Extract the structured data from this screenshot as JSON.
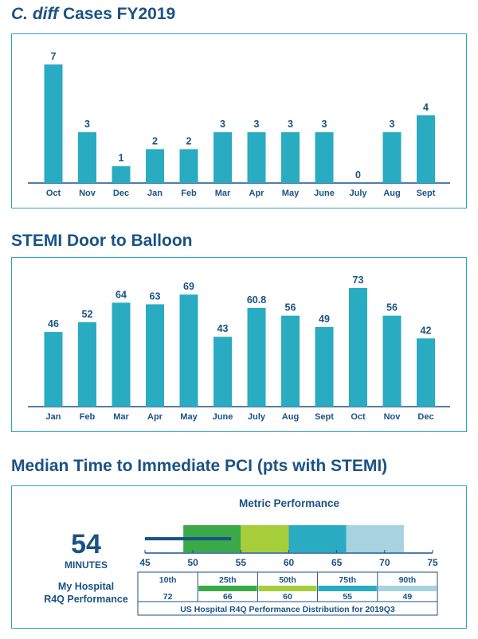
{
  "cdiff": {
    "title_italic": "C. diff",
    "title_rest": " Cases FY2019"
  },
  "stemi": {
    "title": "STEMI Door to Balloon"
  },
  "pci": {
    "title": "Median Time to Immediate PCI (pts with STEMI)",
    "big_value": "54",
    "unit": "MINUTES",
    "perf_label_line1": "My Hospital",
    "perf_label_line2": "R4Q Performance",
    "metric_title": "Metric Performance",
    "table_caption": "US Hospital R4Q Performance Distribution for 2019Q3"
  },
  "chart_data": [
    {
      "type": "bar",
      "title": "C. diff Cases FY2019",
      "categories": [
        "Oct",
        "Nov",
        "Dec",
        "Jan",
        "Feb",
        "Mar",
        "Apr",
        "May",
        "June",
        "July",
        "Aug",
        "Sept"
      ],
      "values": [
        7,
        3,
        1,
        2,
        2,
        3,
        3,
        3,
        3,
        0,
        3,
        4
      ],
      "ylim": [
        0,
        7
      ],
      "bar_color": "#29abc2"
    },
    {
      "type": "bar",
      "title": "STEMI Door to Balloon",
      "categories": [
        "Jan",
        "Feb",
        "Mar",
        "Apr",
        "May",
        "June",
        "July",
        "Aug",
        "Sept",
        "Oct",
        "Nov",
        "Dec"
      ],
      "values": [
        46,
        52,
        64,
        63,
        69,
        43,
        60.8,
        56,
        49,
        73,
        56,
        42
      ],
      "value_labels": [
        "46",
        "52",
        "64",
        "63",
        "69",
        "43",
        "60.8",
        "56",
        "49",
        "73",
        "56",
        "42"
      ],
      "ylim": [
        0,
        73
      ],
      "bar_color": "#29abc2"
    },
    {
      "type": "bar",
      "title": "Metric Performance",
      "xlim": [
        45,
        75
      ],
      "ticks": [
        45,
        50,
        55,
        60,
        65,
        70,
        75
      ],
      "hospital_value": 54,
      "bands": [
        {
          "from": 49,
          "to": 55,
          "color": "#3aa948"
        },
        {
          "from": 55,
          "to": 60,
          "color": "#a6cd3a"
        },
        {
          "from": 60,
          "to": 66,
          "color": "#29abc2"
        },
        {
          "from": 66,
          "to": 72,
          "color": "#a6d3df"
        }
      ],
      "percentiles": [
        "10th",
        "25th",
        "50th",
        "75th",
        "90th"
      ],
      "percentile_values": [
        72,
        66,
        60,
        55,
        49
      ],
      "percentile_colors": [
        "#ffffff",
        "#3aa948",
        "#a6cd3a",
        "#29abc2",
        "#a6d3df"
      ],
      "hospital_color": "#1a5286"
    }
  ]
}
